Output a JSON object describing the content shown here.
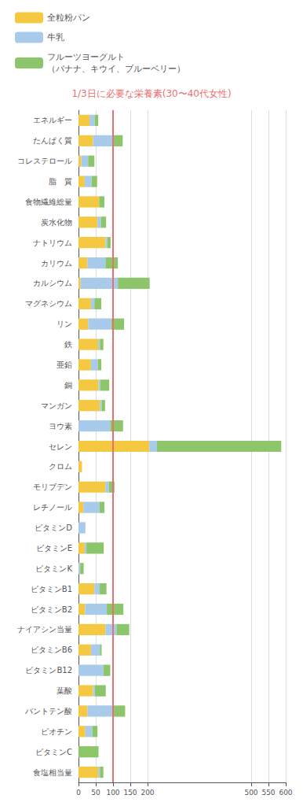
{
  "chart_data": {
    "type": "bar",
    "orientation": "horizontal",
    "stacked": true,
    "subtitle": "1/3日に必要な栄養素(30〜40代女性)",
    "categories": [
      "エネルギー",
      "たんぱく質",
      "コレステロール",
      "脂　質",
      "食物繊維総量",
      "炭水化物",
      "ナトリウム",
      "カリウム",
      "カルシウム",
      "マグネシウム",
      "リン",
      "鉄",
      "亜鉛",
      "銅",
      "マンガン",
      "ヨウ素",
      "セレン",
      "クロム",
      "モリブデン",
      "レチノール",
      "ビタミンD",
      "ビタミンE",
      "ビタミンK",
      "ビタミンB1",
      "ビタミンB2",
      "ナイアシン当量",
      "ビタミンB6",
      "ビタミンB12",
      "葉酸",
      "パントテン酸",
      "ビオチン",
      "ビタミンC",
      "食塩相当量"
    ],
    "series": [
      {
        "name": "全粒粉パン",
        "color": "#F5C842",
        "values": [
          32,
          42,
          8,
          18,
          60,
          55,
          78,
          26,
          6,
          36,
          28,
          57,
          36,
          58,
          62,
          0,
          205,
          10,
          78,
          14,
          0,
          18,
          0,
          46,
          19,
          78,
          36,
          0,
          42,
          26,
          20,
          0,
          57
        ]
      },
      {
        "name": "牛乳",
        "color": "#A8CAEB",
        "values": [
          15,
          58,
          20,
          20,
          0,
          10,
          5,
          52,
          108,
          10,
          67,
          5,
          20,
          5,
          5,
          92,
          22,
          0,
          10,
          47,
          20,
          5,
          5,
          15,
          63,
          32,
          26,
          72,
          5,
          72,
          20,
          0,
          5
        ]
      },
      {
        "name": "フルーツヨーグルト\n（バナナ、キウイ、ブルーベリー）",
        "color": "#8DC66A",
        "values": [
          10,
          28,
          18,
          16,
          15,
          15,
          10,
          36,
          92,
          20,
          37,
          10,
          10,
          26,
          10,
          37,
          360,
          0,
          16,
          14,
          0,
          50,
          10,
          20,
          48,
          37,
          5,
          20,
          32,
          37,
          15,
          58,
          10
        ]
      }
    ],
    "xlim": [
      0,
      600
    ],
    "xticks": [
      0,
      50,
      100,
      150,
      200,
      500,
      550,
      600
    ],
    "grid": true,
    "legend": "top",
    "reference_line": {
      "value": 100,
      "color": "#E87070"
    }
  }
}
